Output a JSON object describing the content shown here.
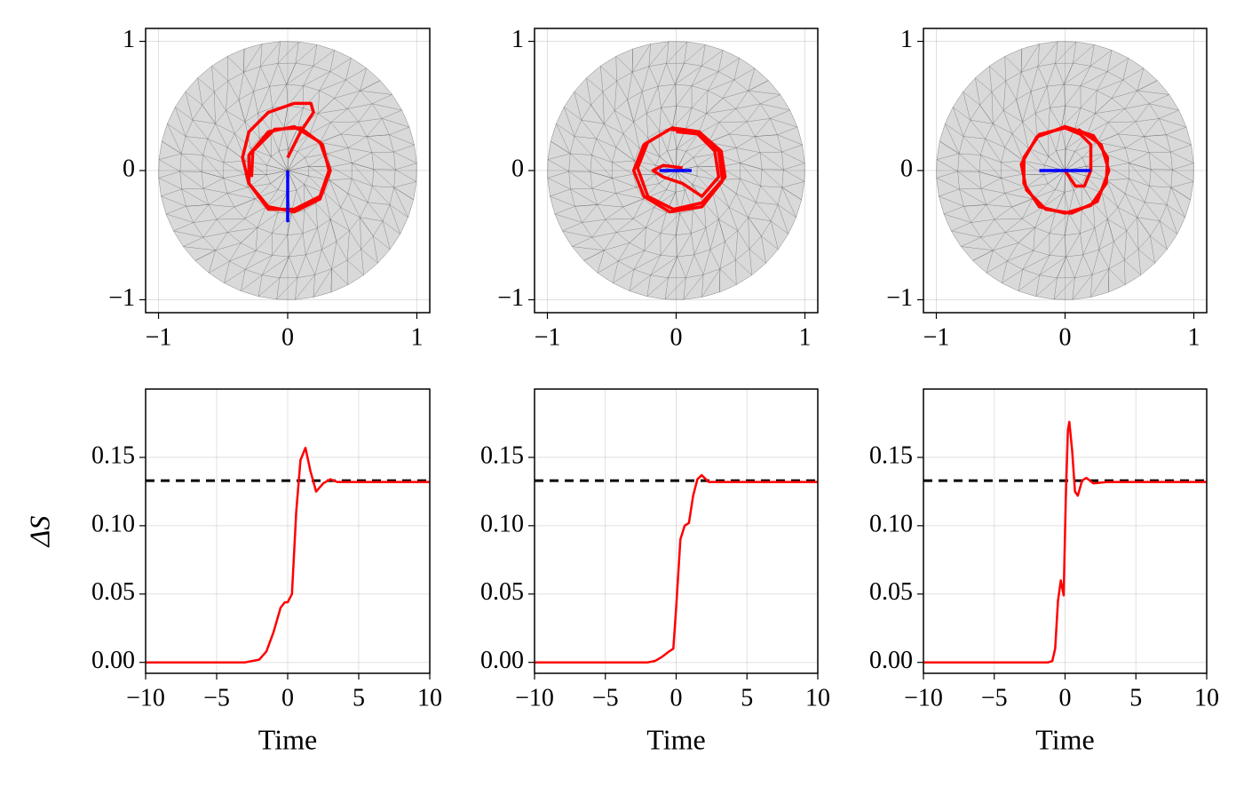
{
  "chart_data": [
    {
      "type": "parametric",
      "xlim": [
        -1.1,
        1.1
      ],
      "ylim": [
        -1.1,
        1.1
      ],
      "xticks": [
        {
          "value": -1,
          "label": "−1"
        },
        0,
        1
      ],
      "yticks": [
        {
          "value": -1,
          "label": "−1"
        },
        0,
        1
      ],
      "grid": true,
      "disk": {
        "radius": 1,
        "color": "#d9d9d9"
      },
      "series": [
        {
          "color": "#ff0000",
          "x": [
            0,
            0.1,
            0.2,
            0.18,
            0.05,
            -0.15,
            -0.3,
            -0.35,
            -0.3,
            -0.15,
            0.05,
            0.25,
            0.33,
            0.25,
            0.05,
            -0.15,
            -0.3,
            -0.3,
            -0.15,
            0.05,
            0.25,
            0.32,
            0.27,
            0.1,
            -0.1,
            -0.27,
            -0.28
          ],
          "values": [
            0.1,
            0.3,
            0.45,
            0.52,
            0.52,
            0.45,
            0.3,
            0.1,
            -0.1,
            -0.28,
            -0.32,
            -0.22,
            0,
            0.22,
            0.34,
            0.3,
            0.12,
            -0.1,
            -0.3,
            -0.3,
            -0.2,
            0,
            0.2,
            0.33,
            0.32,
            0.15,
            -0.05
          ]
        },
        {
          "color": "#0000ff",
          "x": [
            0,
            0
          ],
          "values": [
            0,
            -0.4
          ]
        }
      ]
    },
    {
      "type": "parametric",
      "xlim": [
        -1.1,
        1.1
      ],
      "ylim": [
        -1.1,
        1.1
      ],
      "xticks": [
        {
          "value": -1,
          "label": "−1"
        },
        0,
        1
      ],
      "yticks": [
        {
          "value": -1,
          "label": "−1"
        },
        0,
        1
      ],
      "grid": true,
      "disk": {
        "radius": 1,
        "color": "#d9d9d9"
      },
      "series": [
        {
          "color": "#ff0000",
          "x": [
            0.05,
            -0.1,
            -0.18,
            -0.1,
            0.05,
            0.2,
            0.33,
            0.3,
            0.15,
            -0.05,
            -0.25,
            -0.33,
            -0.25,
            -0.05,
            0.2,
            0.36,
            0.33,
            0.18,
            -0.03,
            -0.22,
            -0.3,
            -0.22,
            -0.02,
            0.2,
            0.38,
            0.35,
            0.2,
            0
          ],
          "values": [
            0.02,
            0.04,
            0,
            -0.05,
            -0.1,
            -0.2,
            -0.05,
            0.15,
            0.3,
            0.32,
            0.2,
            0,
            -0.2,
            -0.32,
            -0.28,
            -0.08,
            0.15,
            0.3,
            0.33,
            0.22,
            0.02,
            -0.2,
            -0.3,
            -0.25,
            -0.05,
            0.15,
            0.28,
            0.3
          ]
        },
        {
          "color": "#0000ff",
          "x": [
            -0.13,
            0.12
          ],
          "values": [
            0,
            0
          ]
        }
      ]
    },
    {
      "type": "parametric",
      "xlim": [
        -1.1,
        1.1
      ],
      "ylim": [
        -1.1,
        1.1
      ],
      "xticks": [
        {
          "value": -1,
          "label": "−1"
        },
        0,
        1
      ],
      "yticks": [
        {
          "value": -1,
          "label": "−1"
        },
        0,
        1
      ],
      "grid": true,
      "disk": {
        "radius": 1,
        "color": "#d9d9d9"
      },
      "series": [
        {
          "color": "#ff0000",
          "x": [
            0,
            0.08,
            0.15,
            0.2,
            0.2,
            0.12,
            0,
            -0.2,
            -0.32,
            -0.32,
            -0.2,
            0,
            0.2,
            0.32,
            0.33,
            0.22,
            0,
            -0.22,
            -0.34,
            -0.3,
            -0.15,
            0.05,
            0.25,
            0.34,
            0.28,
            0.1
          ],
          "values": [
            0,
            -0.12,
            -0.12,
            0,
            0.2,
            0.28,
            0.33,
            0.28,
            0.1,
            -0.1,
            -0.28,
            -0.33,
            -0.27,
            -0.1,
            0.1,
            0.27,
            0.34,
            0.26,
            0.05,
            -0.15,
            -0.3,
            -0.33,
            -0.24,
            0,
            0.2,
            0.32
          ]
        },
        {
          "color": "#0000ff",
          "x": [
            -0.2,
            0.2
          ],
          "values": [
            0,
            0
          ]
        }
      ]
    },
    {
      "type": "line",
      "xlabel": "Time",
      "ylabel": "ΔS",
      "xlim": [
        -10,
        10
      ],
      "ylim": [
        -0.008,
        0.2
      ],
      "xticks": [
        {
          "value": -10,
          "label": "−10"
        },
        {
          "value": -5,
          "label": "−5"
        },
        0,
        5,
        10
      ],
      "yticks": [
        {
          "value": 0,
          "label": "0.00"
        },
        0.05,
        {
          "value": 0.1,
          "label": "0.10"
        },
        0.15
      ],
      "grid": true,
      "reference_line": {
        "value": 0.133,
        "color": "#000000"
      },
      "x": [
        -10,
        -3,
        -2,
        -1.5,
        -1,
        -0.5,
        -0.2,
        0,
        0.3,
        0.6,
        0.9,
        1.25,
        1.6,
        2.0,
        2.5,
        3.0,
        3.5,
        4.5,
        10
      ],
      "series": [
        {
          "color": "#ff0000",
          "values": [
            0,
            0,
            0.002,
            0.008,
            0.022,
            0.04,
            0.044,
            0.044,
            0.05,
            0.11,
            0.148,
            0.157,
            0.14,
            0.125,
            0.131,
            0.134,
            0.132,
            0.132,
            0.132
          ]
        }
      ]
    },
    {
      "type": "line",
      "xlabel": "Time",
      "xlim": [
        -10,
        10
      ],
      "ylim": [
        -0.008,
        0.2
      ],
      "xticks": [
        {
          "value": -10,
          "label": "−10"
        },
        {
          "value": -5,
          "label": "−5"
        },
        0,
        5,
        10
      ],
      "yticks": [
        {
          "value": 0,
          "label": "0.00"
        },
        0.05,
        {
          "value": 0.1,
          "label": "0.10"
        },
        0.15
      ],
      "grid": true,
      "reference_line": {
        "value": 0.133,
        "color": "#000000"
      },
      "x": [
        -10,
        -2,
        -1.5,
        -1,
        -0.5,
        -0.2,
        0,
        0.3,
        0.6,
        0.9,
        1.2,
        1.5,
        1.8,
        2.3,
        3,
        10
      ],
      "series": [
        {
          "color": "#ff0000",
          "values": [
            0,
            0,
            0.001,
            0.004,
            0.008,
            0.01,
            0.04,
            0.09,
            0.1,
            0.102,
            0.122,
            0.134,
            0.137,
            0.132,
            0.132,
            0.132
          ]
        }
      ]
    },
    {
      "type": "line",
      "xlabel": "Time",
      "xlim": [
        -10,
        10
      ],
      "ylim": [
        -0.008,
        0.2
      ],
      "xticks": [
        {
          "value": -10,
          "label": "−10"
        },
        {
          "value": -5,
          "label": "−5"
        },
        0,
        5,
        10
      ],
      "yticks": [
        {
          "value": 0,
          "label": "0.00"
        },
        0.05,
        {
          "value": 0.1,
          "label": "0.10"
        },
        0.15
      ],
      "grid": true,
      "reference_line": {
        "value": 0.133,
        "color": "#000000"
      },
      "x": [
        -10,
        -1.2,
        -0.9,
        -0.7,
        -0.5,
        -0.3,
        -0.1,
        0.05,
        0.2,
        0.3,
        0.5,
        0.7,
        0.9,
        1.2,
        1.5,
        2,
        3,
        10
      ],
      "series": [
        {
          "color": "#ff0000",
          "values": [
            0,
            0,
            0.001,
            0.01,
            0.045,
            0.06,
            0.049,
            0.12,
            0.17,
            0.176,
            0.155,
            0.125,
            0.122,
            0.133,
            0.135,
            0.131,
            0.132,
            0.132
          ]
        }
      ]
    }
  ]
}
